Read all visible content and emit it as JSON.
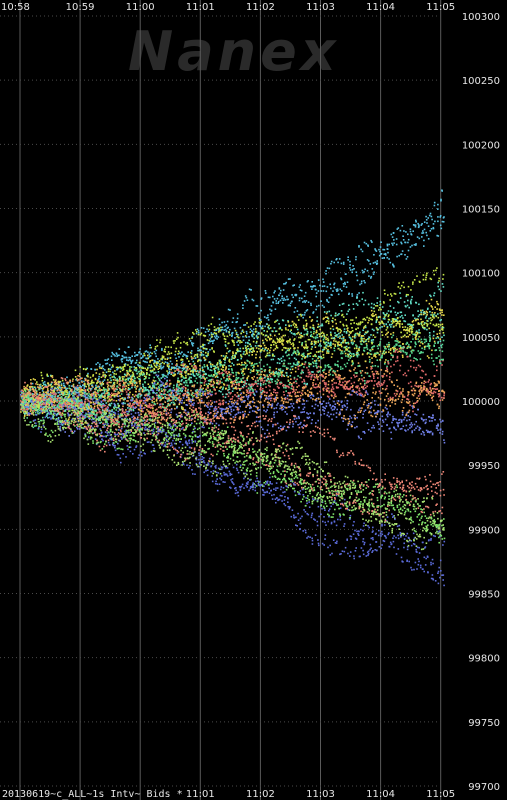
{
  "chart_data": {
    "type": "scatter",
    "watermark": "Nanex",
    "footer": "20130619~c_ALL~1s Intv~ Bids *",
    "x_ticks": [
      "10:58",
      "10:59",
      "11:00",
      "11:01",
      "11:02",
      "11:03",
      "11:04",
      "11:05"
    ],
    "bottom_x_ticks": [
      "11:01",
      "11:02",
      "11:03",
      "11:04",
      "11:05"
    ],
    "y_ticks": [
      "100300",
      "100250",
      "100200",
      "100150",
      "100100",
      "100050",
      "100000",
      "99950",
      "99900",
      "99850",
      "99800",
      "99750",
      "99700"
    ],
    "xlim": [
      "10:58",
      "11:05"
    ],
    "ylim": [
      99700,
      100300
    ],
    "grid": true,
    "series_colors": [
      "#6f7fe8",
      "#5a6ad8",
      "#56c0e0",
      "#62e0c8",
      "#7fe36a",
      "#c7e84a",
      "#e6d84a",
      "#f0a85a",
      "#f08878",
      "#e06a6a",
      "#58d890",
      "#a8e070"
    ],
    "series_end_values": [
      99980,
      99850,
      100145,
      100070,
      99900,
      100100,
      100060,
      100010,
      99920,
      100030,
      100045,
      99890
    ]
  }
}
